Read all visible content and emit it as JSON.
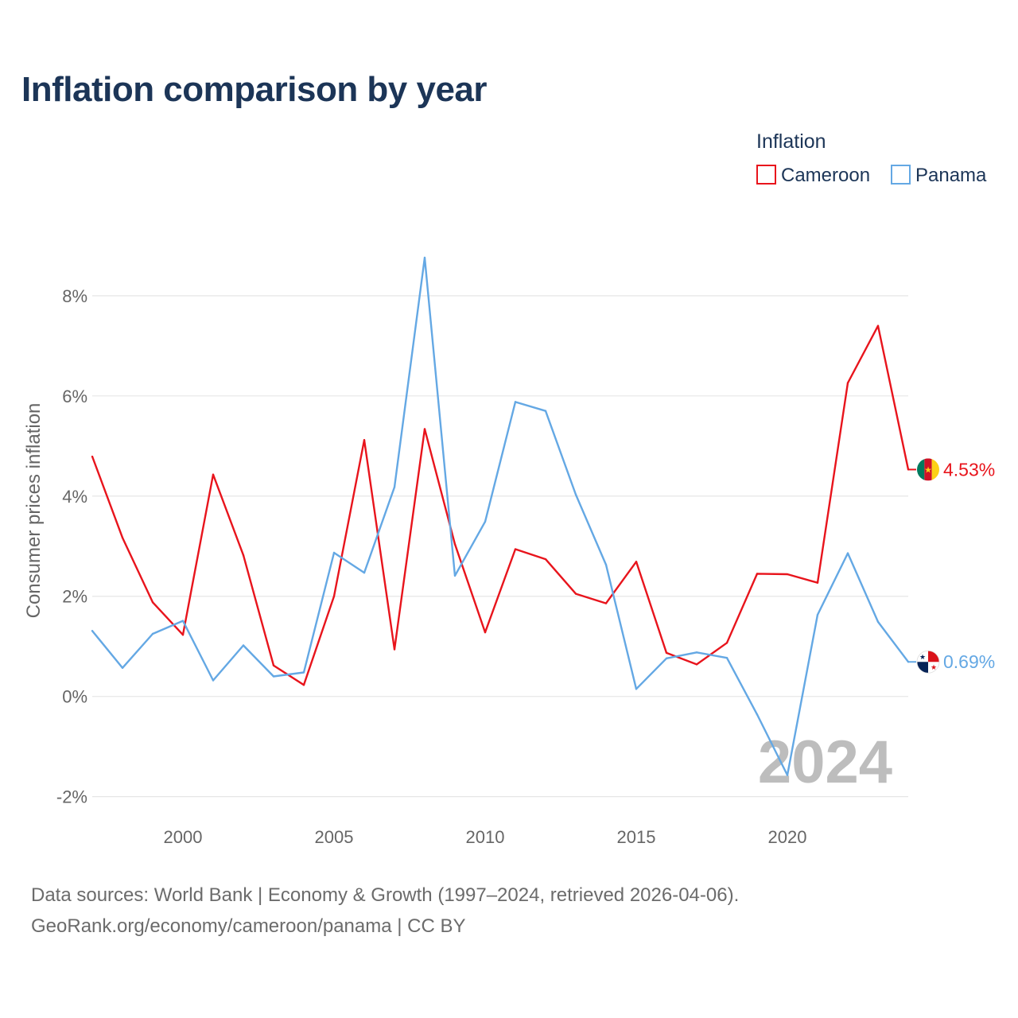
{
  "title": "Inflation comparison by year",
  "colors": {
    "cameroon": "#e8141c",
    "panama": "#64a8e4",
    "title": "#1c3557",
    "grid": "#e6e6e6",
    "watermark": "#bdbdbd"
  },
  "footer": {
    "line1": "Data sources: World Bank | Economy & Growth (1997–2024, retrieved 2026-04-06).",
    "line2": "GeoRank.org/economy/cameroon/panama | CC BY"
  },
  "chart_data": {
    "type": "line",
    "title": "Inflation comparison by year",
    "xlabel": "",
    "ylabel": "Consumer prices inflation",
    "legend_title": "Inflation",
    "legend_position": "top-right",
    "watermark_year": "2024",
    "x": [
      1997,
      1998,
      1999,
      2000,
      2001,
      2002,
      2003,
      2004,
      2005,
      2006,
      2007,
      2008,
      2009,
      2010,
      2011,
      2012,
      2013,
      2014,
      2015,
      2016,
      2017,
      2018,
      2019,
      2020,
      2021,
      2022,
      2023,
      2024
    ],
    "xlim": [
      1997,
      2024
    ],
    "ylim": [
      -2.45,
      9.3
    ],
    "x_ticks": [
      2000,
      2005,
      2010,
      2015,
      2020
    ],
    "x_tick_labels": [
      "2000",
      "2005",
      "2010",
      "2015",
      "2020"
    ],
    "y_ticks": [
      -2,
      0,
      2,
      4,
      6,
      8
    ],
    "y_tick_labels": [
      "-2%",
      "0%",
      "2%",
      "4%",
      "6%",
      "8%"
    ],
    "grid": true,
    "series": [
      {
        "name": "Cameroon",
        "color_key": "cameroon",
        "end_label": "4.53%",
        "flag": "cameroon-flag-icon",
        "values": [
          4.79,
          3.17,
          1.88,
          1.23,
          4.43,
          2.82,
          0.62,
          0.23,
          2.0,
          5.12,
          0.94,
          5.34,
          3.04,
          1.28,
          2.94,
          2.74,
          2.05,
          1.86,
          2.69,
          0.87,
          0.64,
          1.07,
          2.45,
          2.44,
          2.27,
          6.26,
          7.4,
          4.53
        ]
      },
      {
        "name": "Panama",
        "color_key": "panama",
        "end_label": "0.69%",
        "flag": "panama-flag-icon",
        "values": [
          1.31,
          0.57,
          1.25,
          1.51,
          0.32,
          1.02,
          0.4,
          0.48,
          2.87,
          2.47,
          4.18,
          8.76,
          2.41,
          3.49,
          5.88,
          5.7,
          4.03,
          2.63,
          0.15,
          0.76,
          0.88,
          0.77,
          -0.36,
          -1.57,
          1.63,
          2.86,
          1.49,
          0.69
        ]
      }
    ]
  }
}
